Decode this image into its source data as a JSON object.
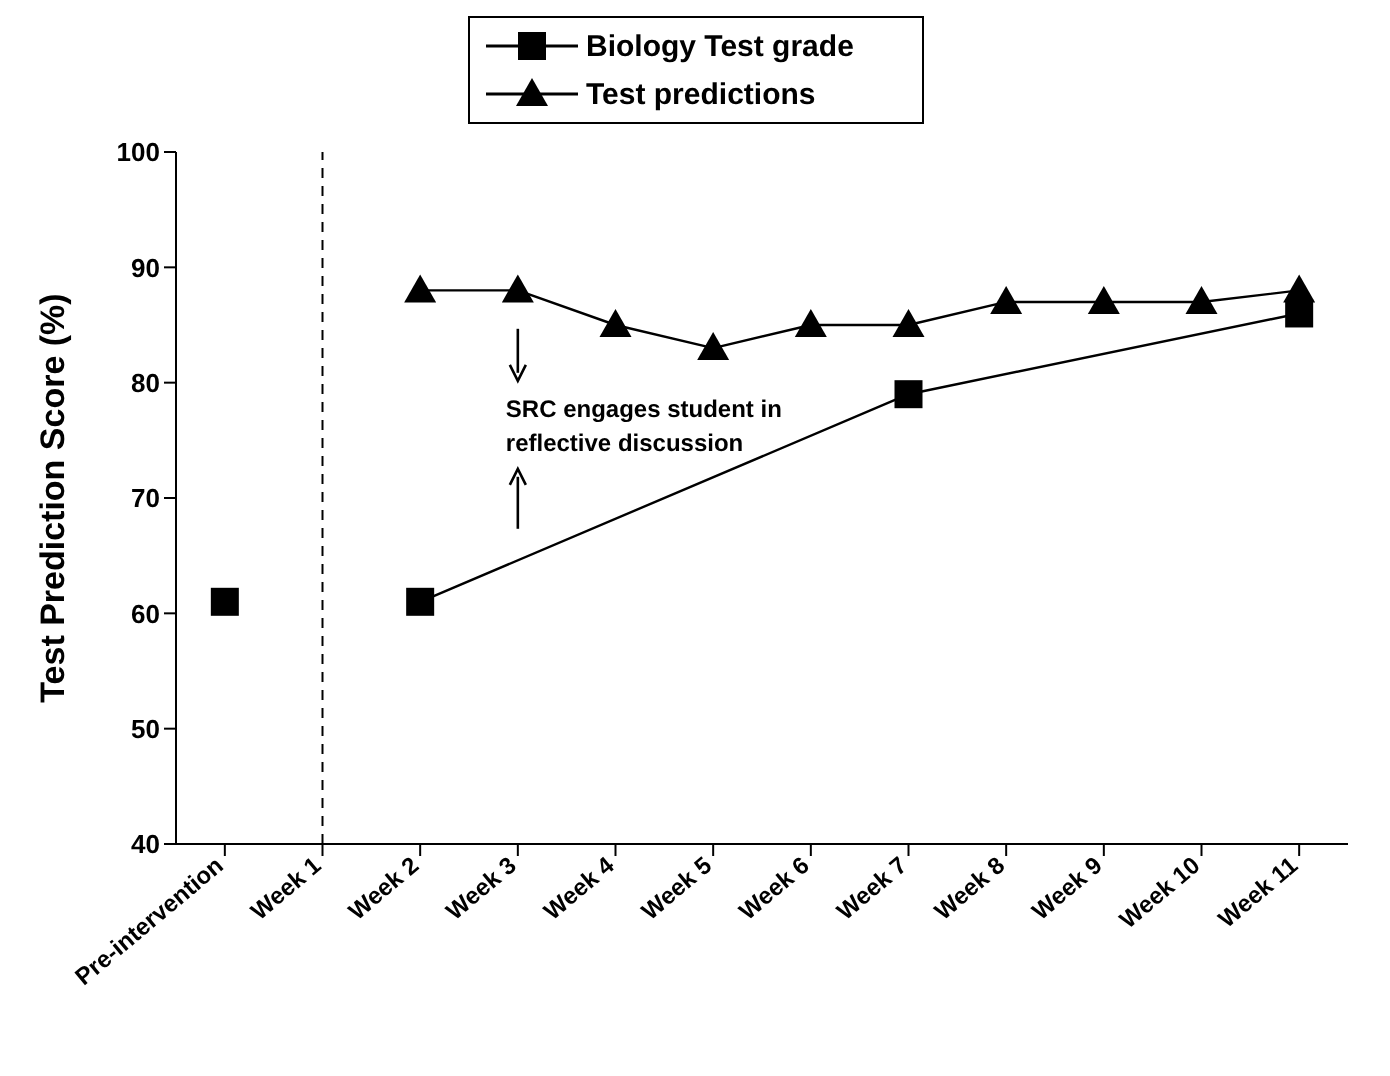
{
  "chart_data": {
    "type": "line",
    "ylabel": "Test Prediction Score (%)",
    "categories": [
      "Pre-intervention",
      "Week 1",
      "Week 2",
      "Week 3",
      "Week 4",
      "Week 5",
      "Week 6",
      "Week 7",
      "Week 8",
      "Week 9",
      "Week 10",
      "Week 11"
    ],
    "series": [
      {
        "name": "Biology Test grade",
        "color": "#000000",
        "marker": "square",
        "values": [
          61,
          null,
          61,
          null,
          null,
          null,
          null,
          79,
          null,
          null,
          null,
          86
        ]
      },
      {
        "name": "Test predictions",
        "color": "#000000",
        "marker": "triangle",
        "values": [
          null,
          null,
          88,
          88,
          85,
          83,
          85,
          85,
          87,
          87,
          87,
          88
        ]
      }
    ],
    "ylim": [
      40,
      100
    ],
    "yticks": [
      40,
      50,
      60,
      70,
      80,
      90,
      100
    ],
    "grid": false,
    "legend": "top",
    "ref_lines": [
      {
        "axis": "x",
        "value": "Week 1",
        "line_style": "dashed",
        "color": "#000000"
      }
    ],
    "annotations": [
      "SRC engages student in reflective discussion"
    ]
  }
}
